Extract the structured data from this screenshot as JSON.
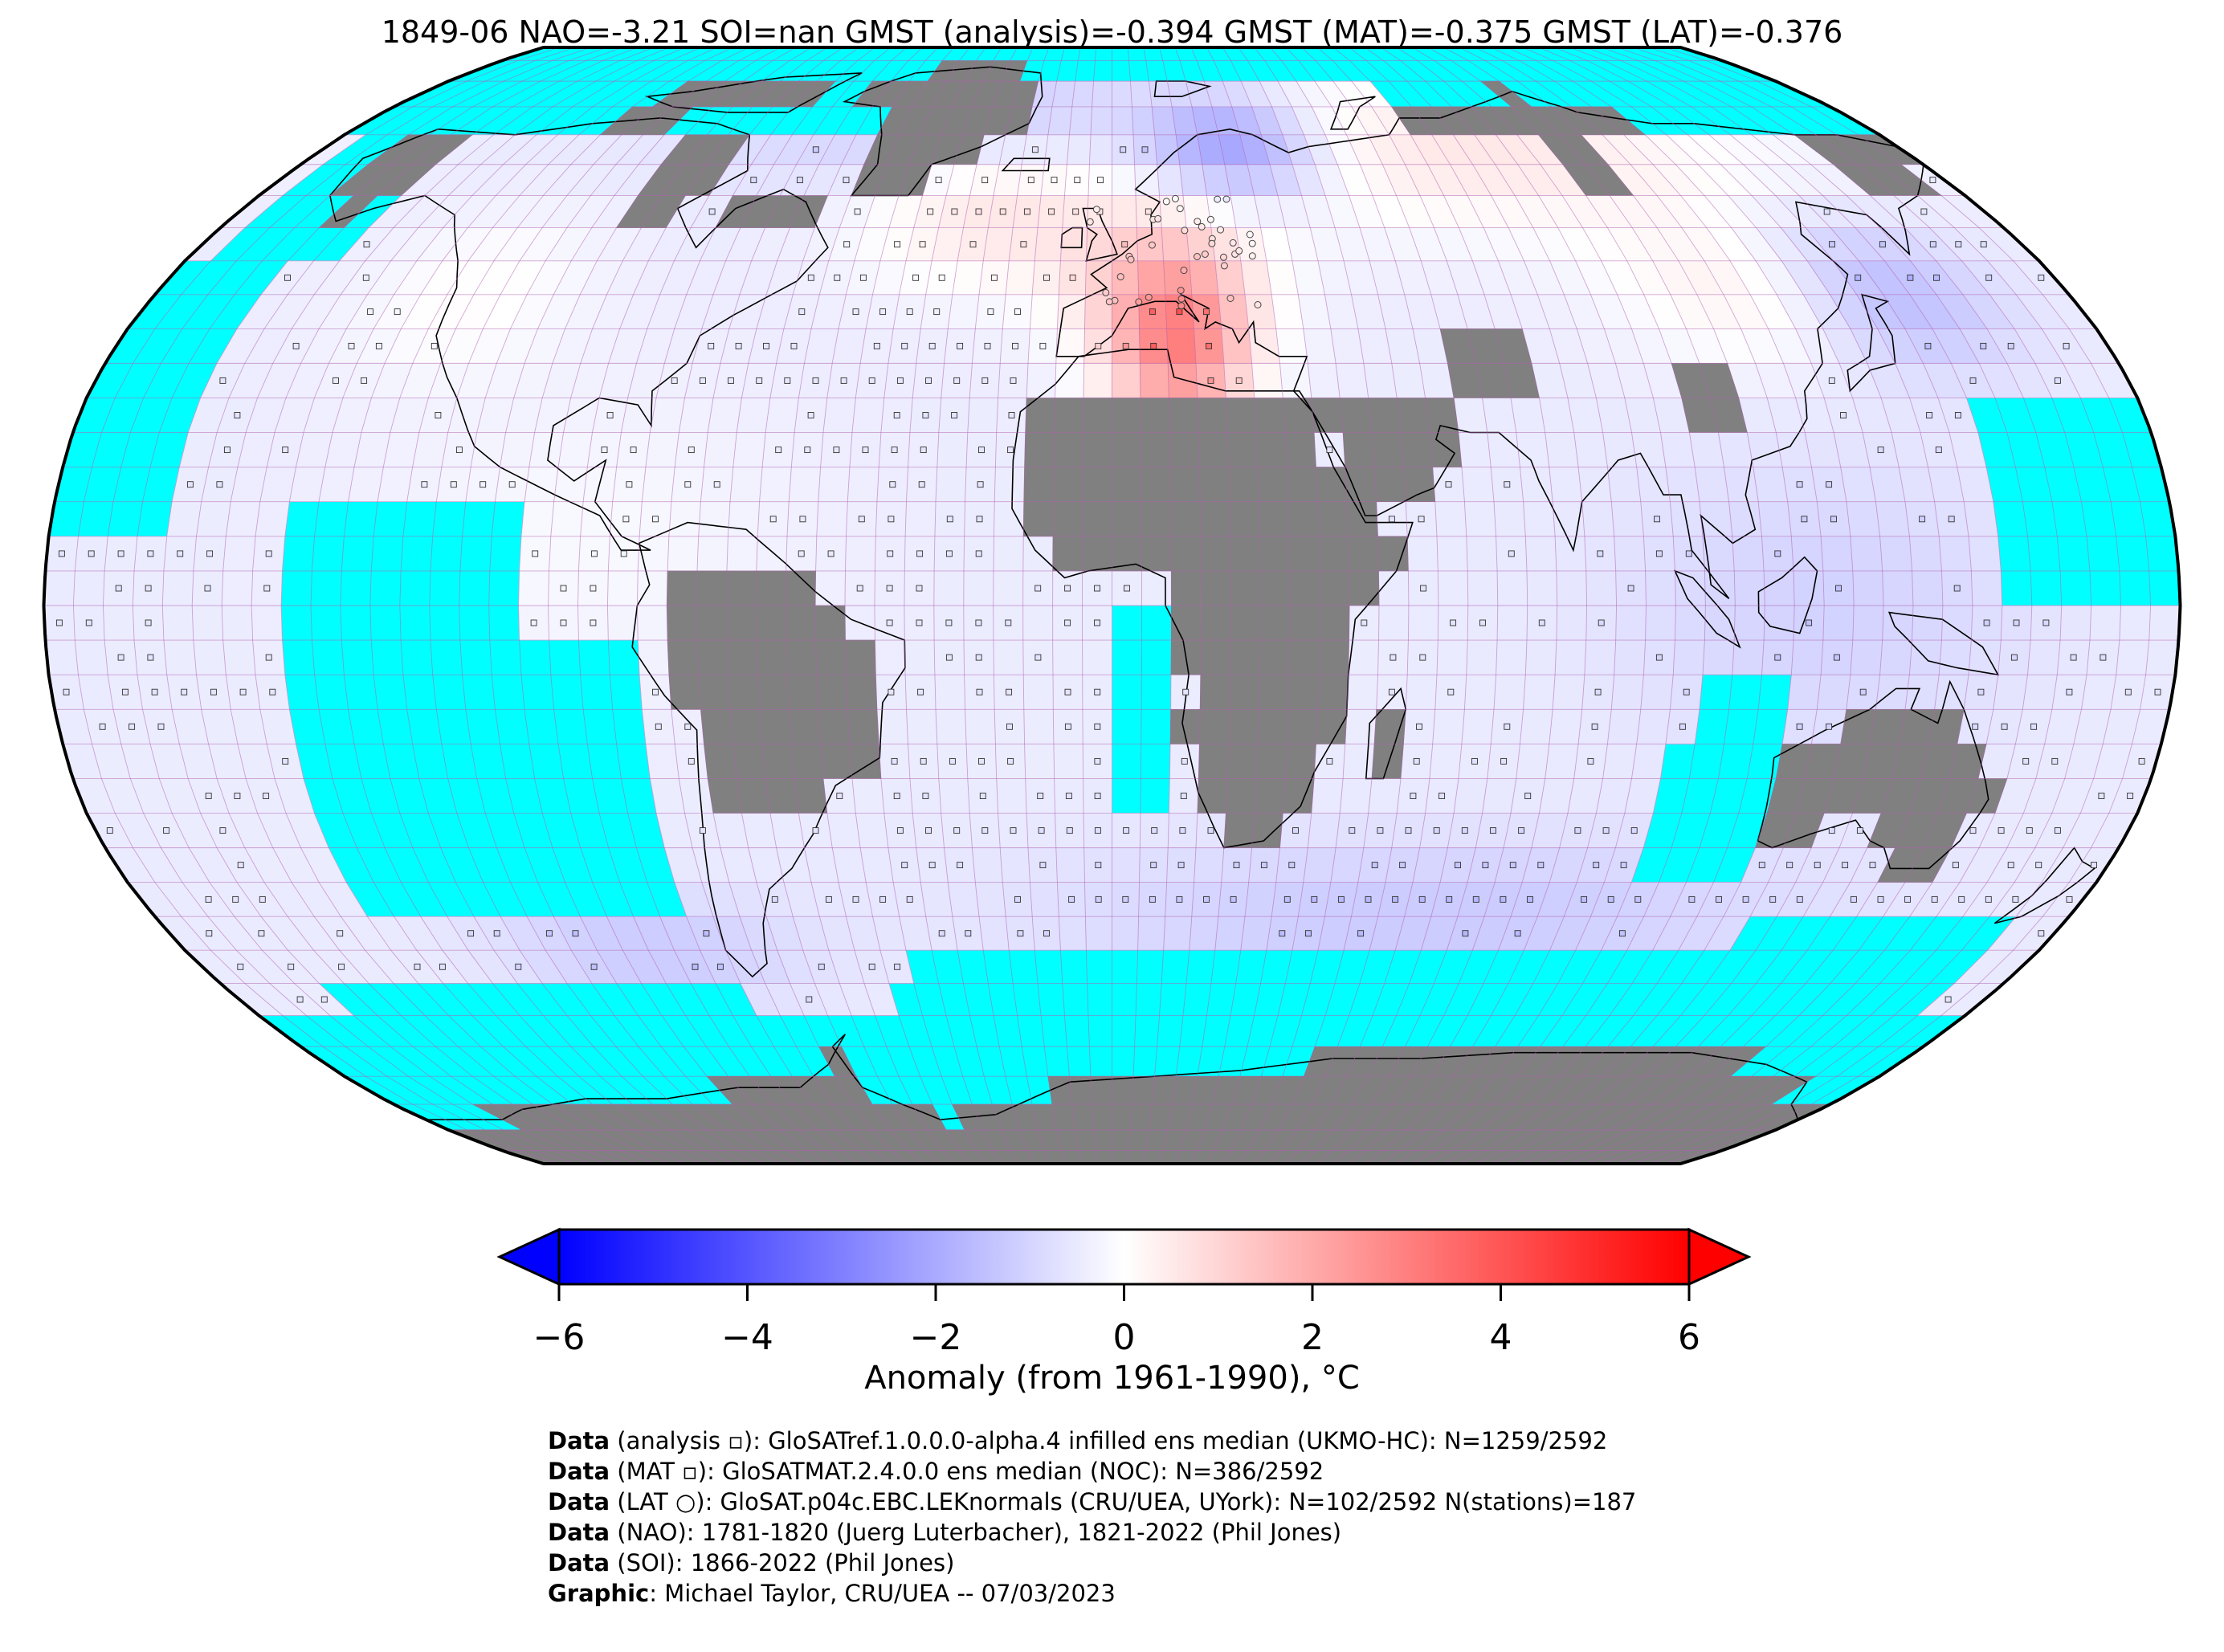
{
  "title": "1849-06 NAO=-3.21 SOI=nan GMST (analysis)=-0.394 GMST (MAT)=-0.375 GMST (LAT)=-0.376",
  "colors": {
    "ocean_nodata": "#00ffff",
    "land_nodata": "#808080",
    "grid": "#b060b0",
    "coast": "#000000",
    "cmap_low": "#0000ff",
    "cmap_mid": "#ffffff",
    "cmap_high": "#ff0000"
  },
  "colorbar": {
    "min": -6,
    "max": 6,
    "ticks": [
      "−6",
      "−4",
      "−2",
      "0",
      "2",
      "4",
      "6"
    ],
    "tick_values": [
      -6,
      -4,
      -2,
      0,
      2,
      4,
      6
    ],
    "label": "Anomaly (from 1961-1990), °C",
    "extend": "both"
  },
  "map": {
    "projection": "Robinson",
    "grid_resolution_deg": 5,
    "anomaly_regions": [
      {
        "region": "North Africa / Mediterranean",
        "anomaly": 2.5
      },
      {
        "region": "Central Europe",
        "anomaly": 1.5
      },
      {
        "region": "Siberia",
        "anomaly": 0.6
      },
      {
        "region": "North Atlantic",
        "anomaly": 0.8
      },
      {
        "region": "Scandinavia",
        "anomaly": -2.2
      },
      {
        "region": "Greenland / Arctic",
        "anomaly": -0.8
      },
      {
        "region": "Japan / NW Pacific",
        "anomaly": -1.6
      },
      {
        "region": "Tropical Pacific",
        "anomaly": -0.6
      },
      {
        "region": "Southern Ocean",
        "anomaly": -1.0
      },
      {
        "region": "Australia region ocean",
        "anomaly": -1.1
      },
      {
        "region": "South Atlantic",
        "anomaly": -0.4
      }
    ]
  },
  "credits": [
    {
      "bold": "Data",
      "text": " (analysis ▫): GloSATref.1.0.0.0-alpha.4 infilled ens median (UKMO-HC): N=1259/2592"
    },
    {
      "bold": "Data",
      "text": " (MAT ▫): GloSATMAT.2.4.0.0 ens median (NOC): N=386/2592"
    },
    {
      "bold": "Data",
      "text": " (LAT ○): GloSAT.p04c.EBC.LEKnormals (CRU/UEA, UYork): N=102/2592 N(stations)=187"
    },
    {
      "bold": "Data",
      "text": " (NAO): 1781-1820 (Juerg Luterbacher), 1821-2022 (Phil Jones)"
    },
    {
      "bold": "Data",
      "text": " (SOI): 1866-2022 (Phil Jones)"
    },
    {
      "bold": "Graphic",
      "text": ": Michael Taylor, CRU/UEA -- 07/03/2023"
    }
  ]
}
